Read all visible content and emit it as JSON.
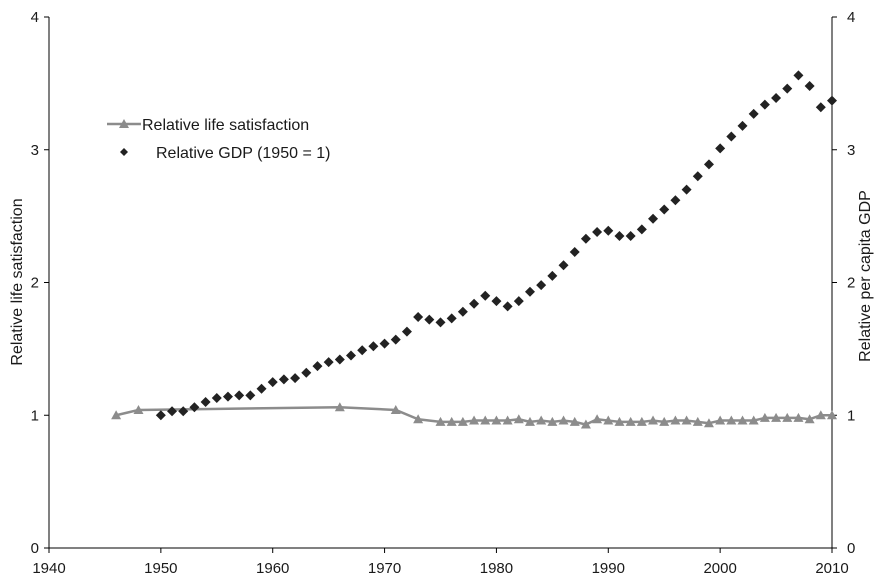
{
  "chart_data": {
    "type": "line",
    "title": "",
    "xlabel": "",
    "ylabel": "Relative life satisfaction",
    "y2label": "Relative per capita GDP",
    "xlim": [
      1940,
      2010
    ],
    "ylim": [
      0,
      4
    ],
    "y2lim": [
      0,
      4
    ],
    "x_ticks": [
      1940,
      1950,
      1960,
      1970,
      1980,
      1990,
      2000,
      2010
    ],
    "y_ticks": [
      0,
      1,
      2,
      3,
      4
    ],
    "y2_ticks": [
      0,
      1,
      2,
      3,
      4
    ],
    "grid": false,
    "legend_placement": "upper-left",
    "series": [
      {
        "name": "Relative life satisfaction",
        "type": "line",
        "axis": "left",
        "color": "#8c8c8c",
        "marker": "triangle",
        "x": [
          1946,
          1948,
          1966,
          1971,
          1973,
          1975,
          1976,
          1977,
          1978,
          1979,
          1980,
          1981,
          1982,
          1983,
          1984,
          1985,
          1986,
          1987,
          1988,
          1989,
          1990,
          1991,
          1992,
          1993,
          1994,
          1995,
          1996,
          1997,
          1998,
          1999,
          2000,
          2001,
          2002,
          2003,
          2004,
          2005,
          2006,
          2007,
          2008,
          2009,
          2010
        ],
        "values": [
          1.0,
          1.04,
          1.06,
          1.04,
          0.97,
          0.95,
          0.95,
          0.95,
          0.96,
          0.96,
          0.96,
          0.96,
          0.97,
          0.95,
          0.96,
          0.95,
          0.96,
          0.95,
          0.93,
          0.97,
          0.96,
          0.95,
          0.95,
          0.95,
          0.96,
          0.95,
          0.96,
          0.96,
          0.95,
          0.94,
          0.96,
          0.96,
          0.96,
          0.96,
          0.98,
          0.98,
          0.98,
          0.98,
          0.97,
          1.0,
          1.0
        ]
      },
      {
        "name": "Relative GDP (1950 = 1)",
        "type": "scatter",
        "axis": "right",
        "color": "#222222",
        "marker": "diamond",
        "x": [
          1950,
          1951,
          1952,
          1953,
          1954,
          1955,
          1956,
          1957,
          1958,
          1959,
          1960,
          1961,
          1962,
          1963,
          1964,
          1965,
          1966,
          1967,
          1968,
          1969,
          1970,
          1971,
          1972,
          1973,
          1974,
          1975,
          1976,
          1977,
          1978,
          1979,
          1980,
          1981,
          1982,
          1983,
          1984,
          1985,
          1986,
          1987,
          1988,
          1989,
          1990,
          1991,
          1992,
          1993,
          1994,
          1995,
          1996,
          1997,
          1998,
          1999,
          2000,
          2001,
          2002,
          2003,
          2004,
          2005,
          2006,
          2007,
          2008,
          2009,
          2010
        ],
        "values": [
          1.0,
          1.03,
          1.03,
          1.06,
          1.1,
          1.13,
          1.14,
          1.15,
          1.15,
          1.2,
          1.25,
          1.27,
          1.28,
          1.32,
          1.37,
          1.4,
          1.42,
          1.45,
          1.49,
          1.52,
          1.54,
          1.57,
          1.63,
          1.74,
          1.72,
          1.7,
          1.73,
          1.78,
          1.84,
          1.9,
          1.86,
          1.82,
          1.86,
          1.93,
          1.98,
          2.05,
          2.13,
          2.23,
          2.33,
          2.38,
          2.39,
          2.35,
          2.35,
          2.4,
          2.48,
          2.55,
          2.62,
          2.7,
          2.8,
          2.89,
          3.01,
          3.1,
          3.18,
          3.27,
          3.34,
          3.39,
          3.46,
          3.56,
          3.48,
          3.32,
          3.37
        ]
      }
    ]
  }
}
